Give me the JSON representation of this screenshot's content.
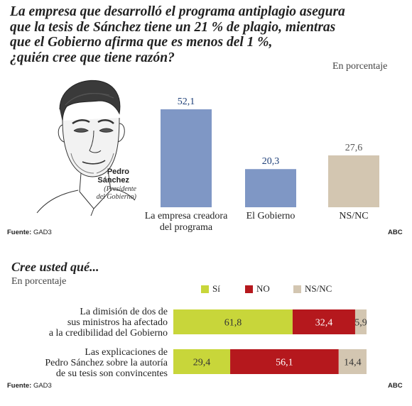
{
  "colors": {
    "blue_bar": "#7f97c5",
    "beige_bar": "#d3c6b1",
    "si": "#c8d63a",
    "no": "#b5181d",
    "nsnc": "#d3c6b1"
  },
  "header": {
    "title_lines": [
      "La empresa que desarrolló el programa antiplagio asegura",
      "que la tesis de Sánchez tiene un 21 % de plagio, mientras",
      "que el Gobierno afirma que es menos del 1 %,",
      "¿quién cree que tiene razón?"
    ],
    "unit": "En porcentaje"
  },
  "portrait": {
    "name_line1": "Pedro",
    "name_line2": "Sánchez",
    "role_line1": "(Presidente",
    "role_line2": "del Gobierno)"
  },
  "chart_data": [
    {
      "type": "bar",
      "title": "La empresa que desarrolló el programa antiplagio asegura que la tesis de Sánchez tiene un 21 % de plagio, mientras que el Gobierno afirma que es menos del 1 %, ¿quién cree que tiene razón?",
      "unit": "En porcentaje",
      "categories": [
        "La empresa creadora del programa",
        "El Gobierno",
        "NS/NC"
      ],
      "category_lines": [
        [
          "La empresa creadora",
          "del programa"
        ],
        [
          "El Gobierno"
        ],
        [
          "NS/NC"
        ]
      ],
      "values": [
        52.1,
        20.3,
        27.6
      ],
      "value_labels": [
        "52,1",
        "20,3",
        "27,6"
      ],
      "colors": [
        "#7f97c5",
        "#7f97c5",
        "#d3c6b1"
      ],
      "label_colors": [
        "#1e3f78",
        "#1e3f78",
        "#555555"
      ],
      "ylim": [
        0,
        55
      ]
    },
    {
      "type": "bar",
      "orientation": "horizontal-stacked",
      "title": "Cree usted qué...",
      "unit": "En porcentaje",
      "legend": [
        "Sí",
        "NO",
        "NS/NC"
      ],
      "legend_position": "top",
      "categories": [
        "La dimisión de dos de sus ministros ha afectado a la credibilidad del Gobierno",
        "Las explicaciones de Pedro Sánchez sobre la autoría de su tesis son convincentes"
      ],
      "category_lines": [
        [
          "La dimisión de dos de",
          "sus ministros ha afectado",
          "a la credibilidad del Gobierno"
        ],
        [
          "Las explicaciones de",
          "Pedro Sánchez sobre la autoría",
          "de su tesis son convincentes"
        ]
      ],
      "series": [
        {
          "name": "Sí",
          "values": [
            61.8,
            29.4
          ],
          "value_labels": [
            "61,8",
            "29,4"
          ]
        },
        {
          "name": "NO",
          "values": [
            32.4,
            56.1
          ],
          "value_labels": [
            "32,4",
            "56,1"
          ]
        },
        {
          "name": "NS/NC",
          "values": [
            5.9,
            14.4
          ],
          "value_labels": [
            "5,9",
            "14,4"
          ]
        }
      ],
      "xlim": [
        0,
        100
      ]
    }
  ],
  "footer1": {
    "source_label": "Fuente:",
    "source": "GAD3",
    "credit": "ABC"
  },
  "footer2": {
    "source_label": "Fuente:",
    "source": "GAD3",
    "credit": "ABC"
  }
}
